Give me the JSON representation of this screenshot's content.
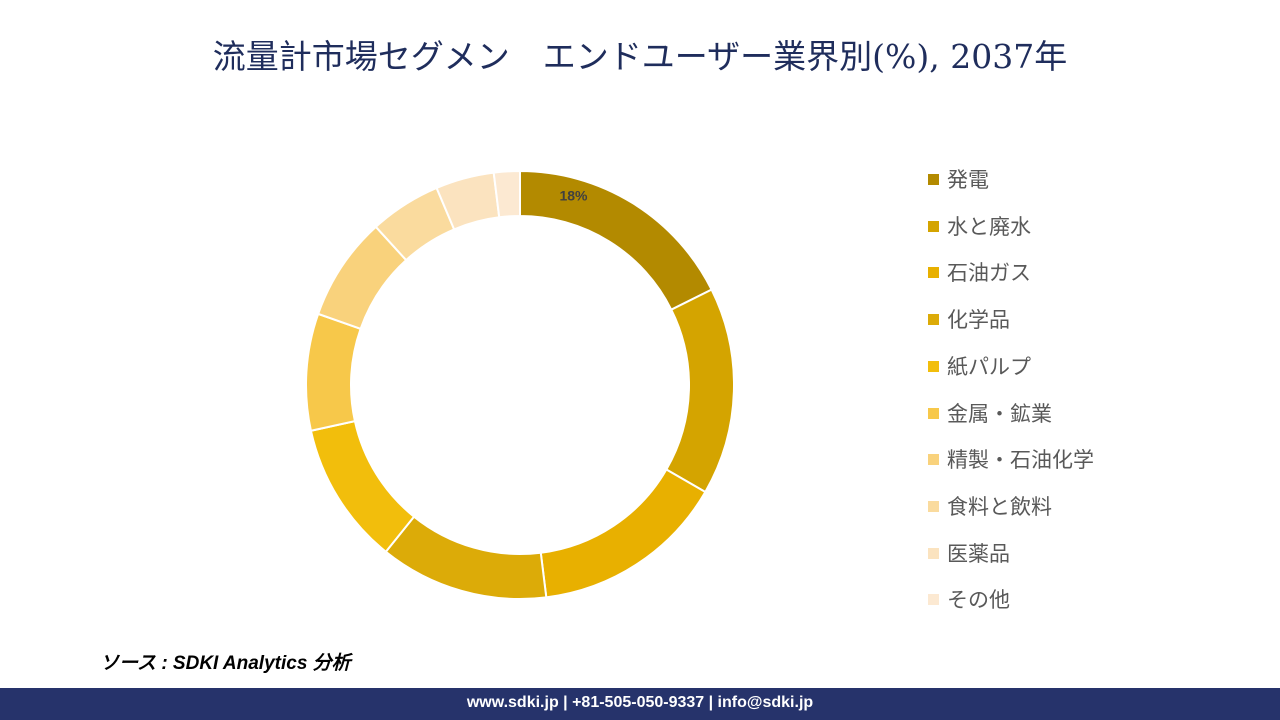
{
  "title": "流量計市場セグメン　エンドユーザー業界別(%), 2037年",
  "chart_data": {
    "type": "donut",
    "title": "流量計市場セグメン　エンドユーザー業界別(%), 2037年",
    "categories": [
      "発電",
      "水と廃水",
      "石油ガス",
      "化学品",
      "紙パルプ",
      "金属・鉱業",
      "精製・石油化学",
      "食料と飲料",
      "医薬品",
      "その他"
    ],
    "values": [
      18,
      16,
      15,
      13,
      11,
      9,
      8,
      5.5,
      4.5,
      2
    ],
    "data_labels": [
      "18%",
      "",
      "",
      "",
      "",
      "",
      "",
      "",
      "",
      ""
    ],
    "colors": [
      "#b38a00",
      "#d4a400",
      "#e8b000",
      "#dcab08",
      "#f2be0c",
      "#f7c84a",
      "#f9d27c",
      "#fadb9e",
      "#fbe3bf",
      "#fce9d2"
    ],
    "legend_position": "right",
    "start_angle": "top",
    "direction": "clockwise"
  },
  "source": "ソース : SDKI Analytics 分析",
  "footer": "www.sdki.jp | +81-505-050-9337 | info@sdki.jp"
}
